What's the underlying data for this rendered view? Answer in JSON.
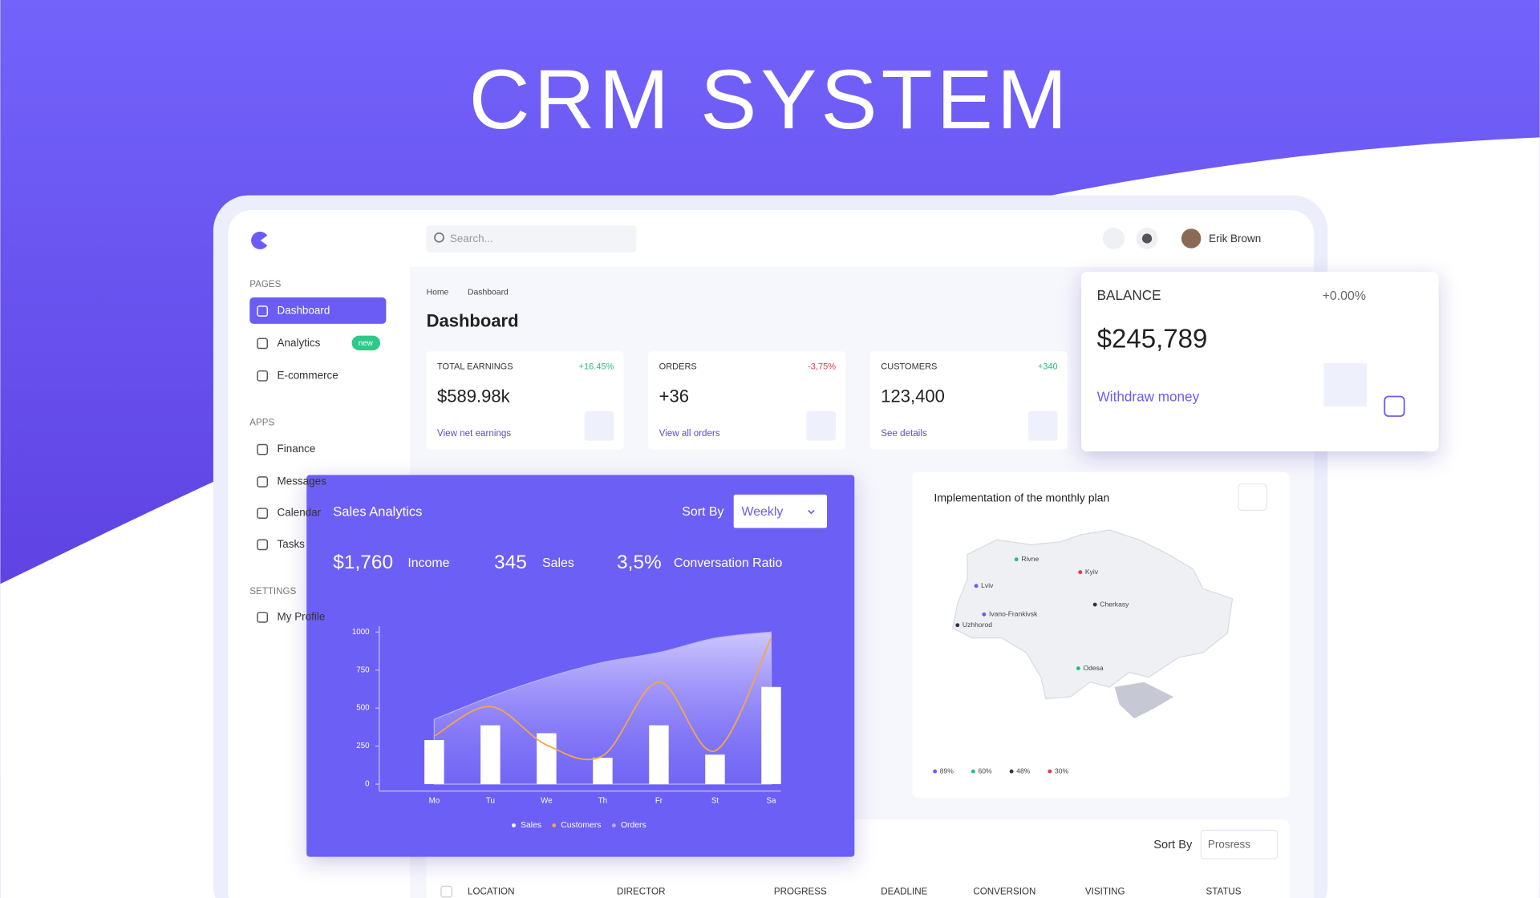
{
  "header": {
    "title": "CRM SYSTEM"
  },
  "topbar": {
    "search_placeholder": "Search...",
    "user": "Erik Brown"
  },
  "sidebar": {
    "sections": [
      {
        "title": "PAGES",
        "items": [
          "Dashboard",
          "Analytics",
          "E-commerce"
        ]
      },
      {
        "title": "APPS",
        "items": [
          "Finance",
          "Messages",
          "Calendar",
          "Tasks"
        ]
      },
      {
        "title": "SETTINGS",
        "items": [
          "My Profile"
        ]
      }
    ],
    "badge": "new"
  },
  "breadcrumb": [
    "Home",
    "Dashboard"
  ],
  "page_title": "Dashboard",
  "stats": [
    {
      "label": "TOTAL EARNINGS",
      "change": "+16.45%",
      "value": "$589.98k",
      "link": "View net earnings"
    },
    {
      "label": "ORDERS",
      "change": "-3,75%",
      "value": "+36",
      "link": "View all orders"
    },
    {
      "label": "CUSTOMERS",
      "change": "+340",
      "value": "123,400",
      "link": "See details"
    }
  ],
  "balance": {
    "label": "BALANCE",
    "change": "+0.00%",
    "value": "$245,789",
    "action": "Withdraw money"
  },
  "sales_card": {
    "title": "Sales Analytics",
    "sort_label": "Sort By",
    "sort_value": "Weekly",
    "kpis": [
      {
        "value": "$1,760",
        "label": "Income"
      },
      {
        "value": "345",
        "label": "Sales"
      },
      {
        "value": "3,5%",
        "label": "Conversation Ratio"
      }
    ]
  },
  "chart_data": {
    "type": "bar",
    "categories": [
      "Mo",
      "Tu",
      "We",
      "Th",
      "Fr",
      "St",
      "Sa"
    ],
    "ylim": [
      0,
      1000
    ],
    "yticks": [
      0,
      250,
      500,
      750,
      1000
    ],
    "series": [
      {
        "name": "Sales",
        "type": "bar",
        "color": "#ffffff",
        "values": [
          290,
          387,
          335,
          174,
          387,
          194,
          639
        ]
      },
      {
        "name": "Customers",
        "type": "line",
        "color": "#f5a54a",
        "values": [
          316,
          510,
          258,
          187,
          671,
          219,
          960
        ]
      },
      {
        "name": "Orders",
        "type": "area",
        "color": "#b9b0fb",
        "values": [
          426,
          574,
          700,
          800,
          865,
          960,
          1000
        ]
      }
    ]
  },
  "map": {
    "title": "Implementation of the monthly plan",
    "cities": [
      {
        "name": "Rivne",
        "color": "#22c07a"
      },
      {
        "name": "Kyiv",
        "color": "#e8384f"
      },
      {
        "name": "Lviv",
        "color": "#6b5cf6"
      },
      {
        "name": "Cherkasy",
        "color": "#333344"
      },
      {
        "name": "Ivano-Frankivsk",
        "color": "#6b5cf6"
      },
      {
        "name": "Uzhhorod",
        "color": "#333344"
      },
      {
        "name": "Odesa",
        "color": "#22c07a"
      }
    ],
    "legend": [
      {
        "label": "89%",
        "color": "#6b5cf6"
      },
      {
        "label": "60%",
        "color": "#22c07a"
      },
      {
        "label": "48%",
        "color": "#333344"
      },
      {
        "label": "30%",
        "color": "#e8384f"
      }
    ]
  },
  "table": {
    "sort_label": "Sort By",
    "sort_value": "Prosress",
    "columns": [
      "LOCATION",
      "DIRECTOR",
      "PROGRESS",
      "DEADLINE",
      "CONVERSION",
      "VISITING",
      "STATUS"
    ]
  }
}
